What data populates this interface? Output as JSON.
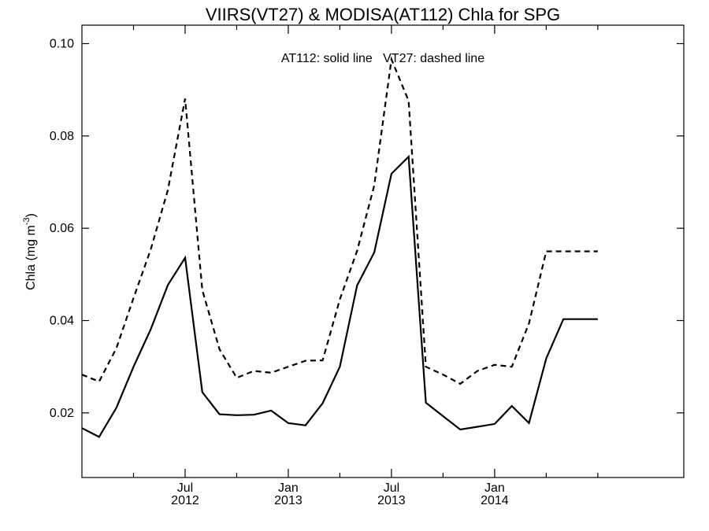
{
  "chart_data": {
    "type": "line",
    "title": "VIIRS(VT27) & MODISA(AT112)  Chla for SPG",
    "ylabel_main": "Chla (mg m",
    "ylabel_sup": "-3",
    "ylabel_close": ")",
    "annotation": "AT112: solid line   VT27: dashed line",
    "ylim": [
      0.006,
      0.104
    ],
    "xlim": [
      "2012-01-01",
      "2014-12-01"
    ],
    "y_ticks": [
      0.02,
      0.04,
      0.06,
      0.08,
      0.1
    ],
    "y_tick_labels": [
      "0.02",
      "0.04",
      "0.06",
      "0.08",
      "0.10"
    ],
    "x_ticks_major": [
      {
        "date": "2012-07-01",
        "month": "Jul",
        "year": "2012"
      },
      {
        "date": "2013-01-01",
        "month": "Jan",
        "year": "2013"
      },
      {
        "date": "2013-07-01",
        "month": "Jul",
        "year": "2013"
      },
      {
        "date": "2014-01-01",
        "month": "Jan",
        "year": "2014"
      }
    ],
    "x_ticks_minor": [
      "2012-04-01",
      "2012-10-01",
      "2013-04-01",
      "2013-10-01",
      "2014-04-01",
      "2014-07-01"
    ],
    "grid": false,
    "series": [
      {
        "name": "AT112",
        "style": "solid",
        "color": "#000000",
        "x": [
          "2012-01-01",
          "2012-02-01",
          "2012-03-01",
          "2012-04-01",
          "2012-05-01",
          "2012-06-01",
          "2012-07-01",
          "2012-08-01",
          "2012-09-01",
          "2012-10-01",
          "2012-11-01",
          "2012-12-01",
          "2013-01-01",
          "2013-02-01",
          "2013-03-01",
          "2013-04-01",
          "2013-05-01",
          "2013-06-01",
          "2013-07-01",
          "2013-08-01",
          "2013-09-01",
          "2013-10-01",
          "2013-11-01",
          "2013-12-01",
          "2014-01-01",
          "2014-02-01",
          "2014-03-01",
          "2014-04-01",
          "2014-05-01",
          "2014-06-01",
          "2014-07-01"
        ],
        "values": [
          0.0167,
          0.0148,
          0.0211,
          0.03,
          0.0381,
          0.0477,
          0.0536,
          0.0245,
          0.0197,
          0.0195,
          0.0196,
          0.0205,
          0.0178,
          0.0173,
          0.0221,
          0.03,
          0.0476,
          0.0548,
          0.0718,
          0.0755,
          0.0222,
          0.0193,
          0.0164,
          0.017,
          0.0176,
          0.0215,
          0.0178,
          0.0318,
          0.0403,
          0.0403,
          0.0403
        ]
      },
      {
        "name": "VT27",
        "style": "dashed",
        "color": "#000000",
        "x": [
          "2012-01-01",
          "2012-02-01",
          "2012-03-01",
          "2012-04-01",
          "2012-05-01",
          "2012-06-01",
          "2012-07-01",
          "2012-08-01",
          "2012-09-01",
          "2012-10-01",
          "2012-11-01",
          "2012-12-01",
          "2013-01-01",
          "2013-02-01",
          "2013-03-01",
          "2013-04-01",
          "2013-05-01",
          "2013-06-01",
          "2013-07-01",
          "2013-08-01",
          "2013-09-01",
          "2013-10-01",
          "2013-11-01",
          "2013-12-01",
          "2014-01-01",
          "2014-02-01",
          "2014-03-01",
          "2014-04-01",
          "2014-05-01",
          "2014-06-01",
          "2014-07-01"
        ],
        "values": [
          0.0283,
          0.0268,
          0.034,
          0.0449,
          0.0554,
          0.0683,
          0.0881,
          0.0466,
          0.0338,
          0.0276,
          0.0291,
          0.0287,
          0.03,
          0.0313,
          0.0314,
          0.0446,
          0.0551,
          0.0693,
          0.0966,
          0.0876,
          0.03,
          0.0283,
          0.0263,
          0.0291,
          0.0304,
          0.03,
          0.0394,
          0.055,
          0.055,
          0.055,
          0.055
        ]
      }
    ]
  }
}
